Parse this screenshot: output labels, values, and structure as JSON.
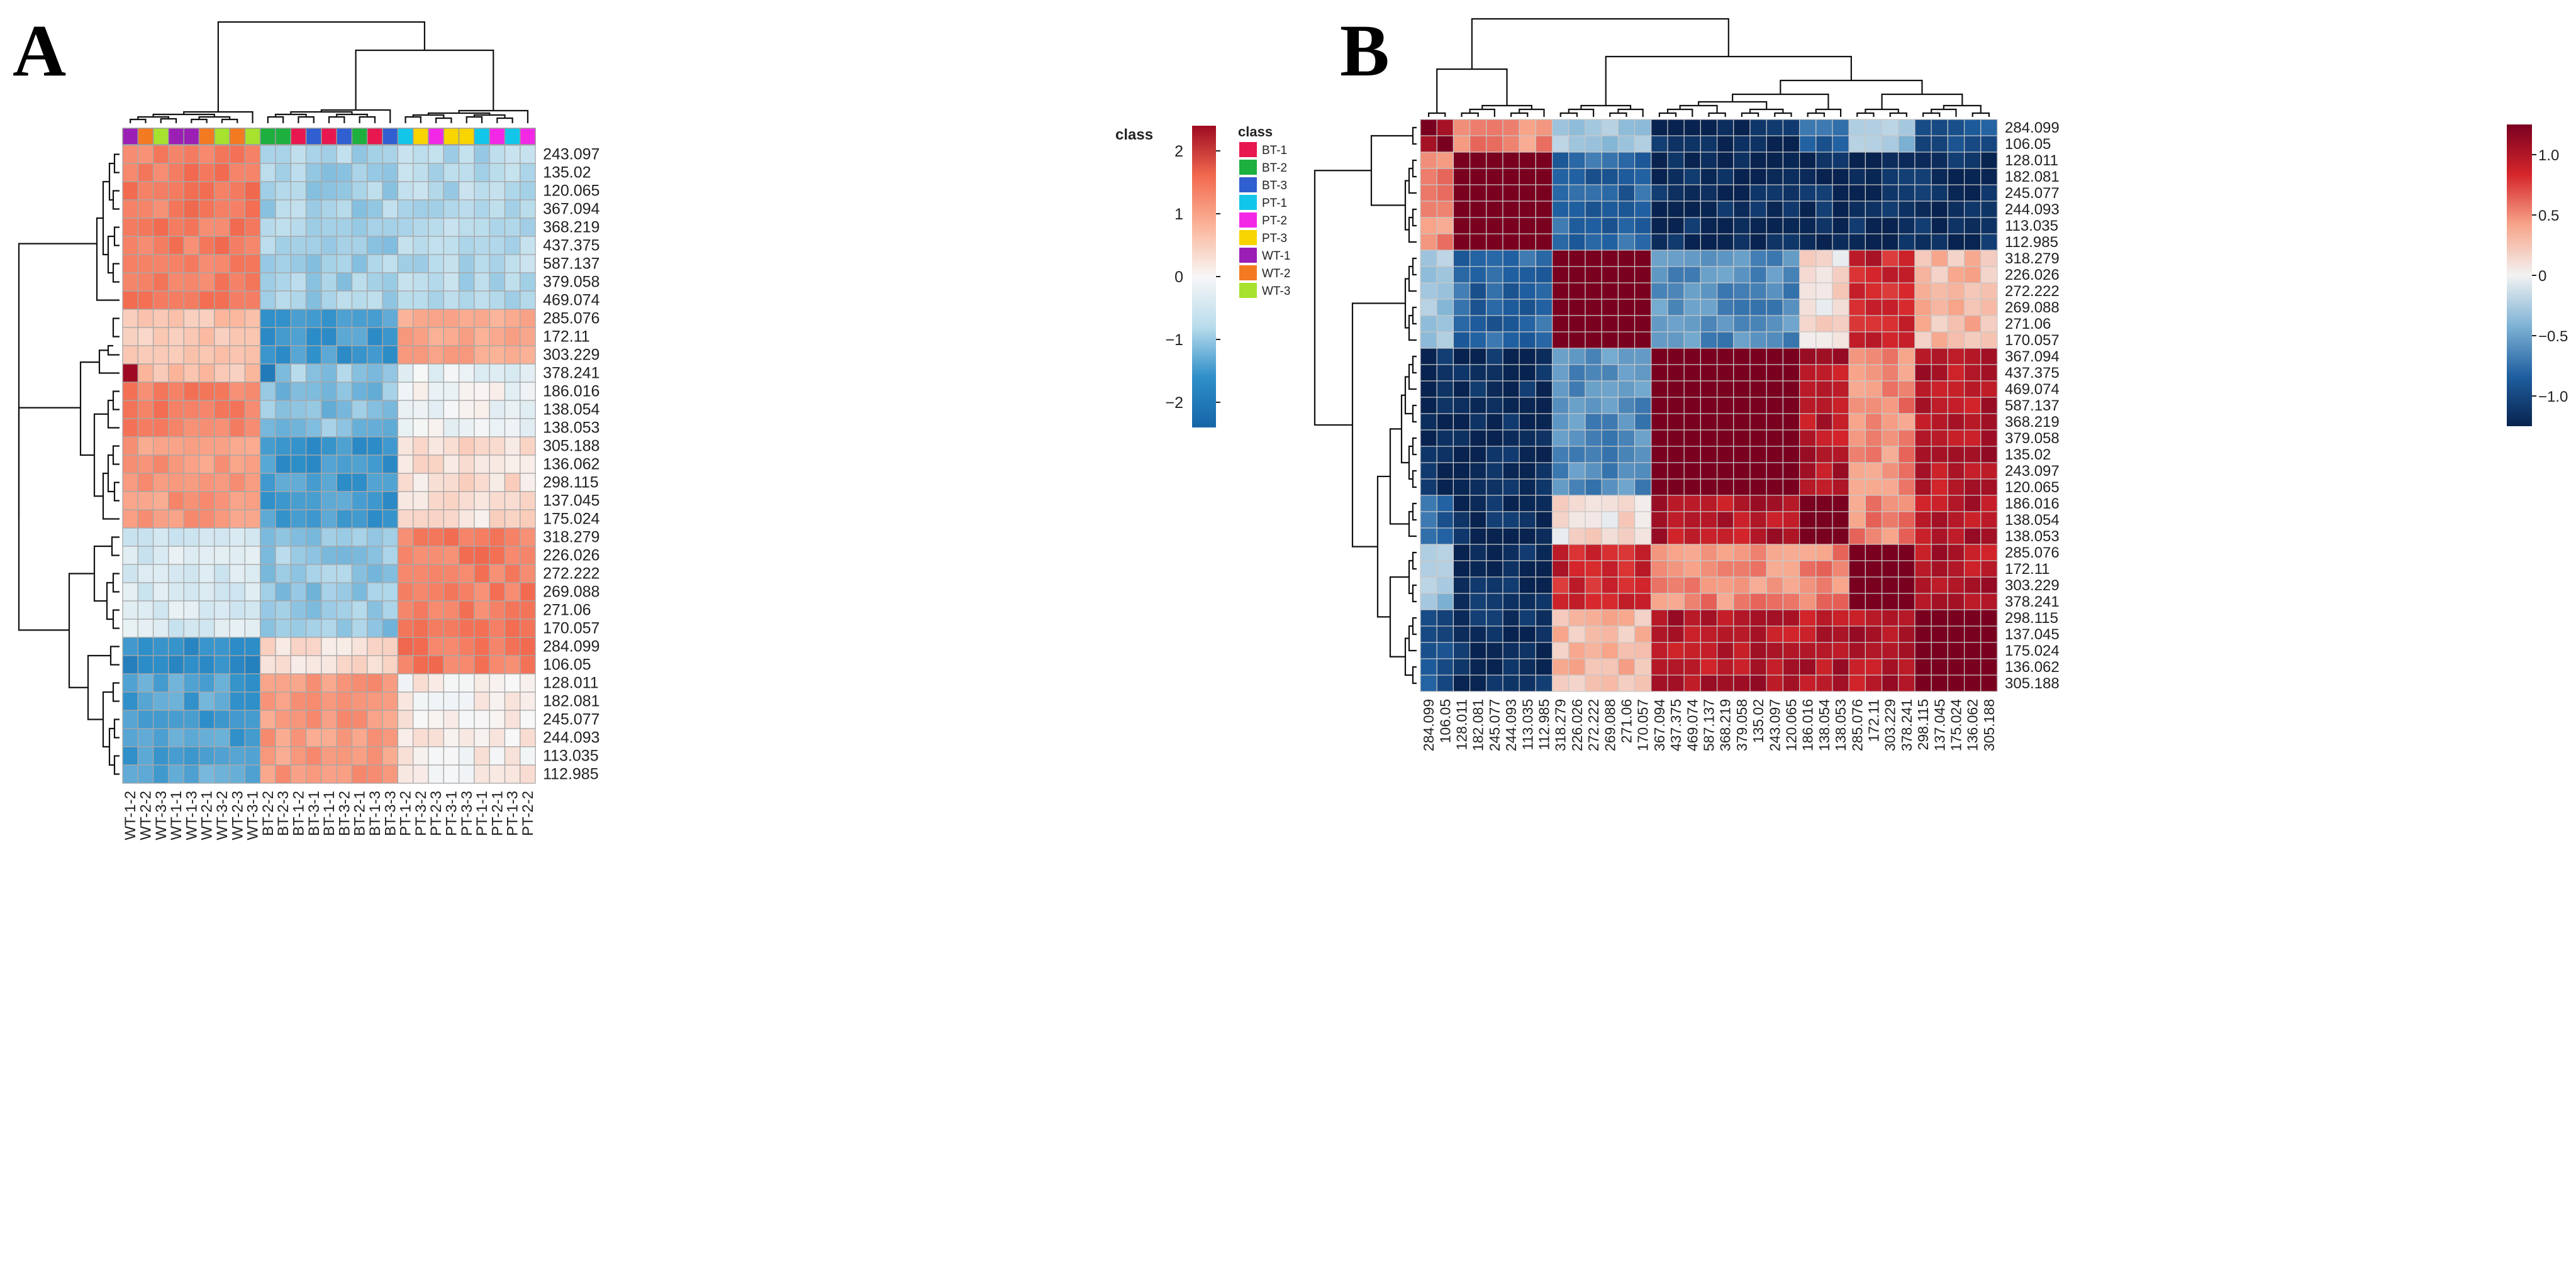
{
  "panels": [
    {
      "id": "A",
      "letter": "A"
    },
    {
      "id": "B",
      "letter": "B"
    }
  ],
  "chart_data": [
    {
      "type": "heatmap",
      "panel": "A",
      "title": "",
      "annotation_label": "class",
      "legend_title": "class",
      "legend": [
        {
          "label": "BT-1",
          "color": "#E8174F"
        },
        {
          "label": "BT-2",
          "color": "#1DB03F"
        },
        {
          "label": "BT-3",
          "color": "#2F5FD0"
        },
        {
          "label": "PT-1",
          "color": "#12C6EA"
        },
        {
          "label": "PT-2",
          "color": "#F228E6"
        },
        {
          "label": "PT-3",
          "color": "#F8D400"
        },
        {
          "label": "WT-1",
          "color": "#9B1FB5"
        },
        {
          "label": "WT-2",
          "color": "#F47A22"
        },
        {
          "label": "WT-3",
          "color": "#A6E22E"
        }
      ],
      "columns": [
        "WT-1-2",
        "WT-2-2",
        "WT-3-3",
        "WT-1-1",
        "WT-1-3",
        "WT-2-1",
        "WT-3-2",
        "WT-2-3",
        "WT-3-1",
        "BT-2-2",
        "BT-2-3",
        "BT-1-2",
        "BT-3-1",
        "BT-1-1",
        "BT-3-2",
        "BT-2-1",
        "BT-1-3",
        "BT-3-3",
        "PT-1-2",
        "PT-3-2",
        "PT-2-3",
        "PT-3-1",
        "PT-3-3",
        "PT-1-1",
        "PT-2-1",
        "PT-1-3",
        "PT-2-2"
      ],
      "column_class": [
        "WT-1",
        "WT-2",
        "WT-3",
        "WT-1",
        "WT-1",
        "WT-2",
        "WT-3",
        "WT-2",
        "WT-3",
        "BT-2",
        "BT-2",
        "BT-1",
        "BT-3",
        "BT-1",
        "BT-3",
        "BT-2",
        "BT-1",
        "BT-3",
        "PT-1",
        "PT-3",
        "PT-2",
        "PT-3",
        "PT-3",
        "PT-1",
        "PT-2",
        "PT-1",
        "PT-2"
      ],
      "rows": [
        "243.097",
        "135.02",
        "120.065",
        "367.094",
        "368.219",
        "437.375",
        "587.137",
        "379.058",
        "469.074",
        "285.076",
        "172.11",
        "303.229",
        "378.241",
        "186.016",
        "138.054",
        "138.053",
        "305.188",
        "136.062",
        "298.115",
        "137.045",
        "175.024",
        "318.279",
        "226.026",
        "272.222",
        "269.088",
        "271.06",
        "170.057",
        "284.099",
        "106.05",
        "128.011",
        "182.081",
        "245.077",
        "244.093",
        "113.035",
        "112.985"
      ],
      "row_group_values": [
        {
          "rows": 9,
          "WT": 1.4,
          "BT": -0.9,
          "PT": -0.8
        },
        {
          "rows": 3,
          "WT": 0.6,
          "BT": -1.5,
          "PT": 0.9
        },
        {
          "rows": 1,
          "WT": 0.6,
          "BT": -1.0,
          "PT": -0.2
        },
        {
          "rows": 3,
          "WT": 1.4,
          "BT": -1.1,
          "PT": -0.1
        },
        {
          "rows": 5,
          "WT": 1.1,
          "BT": -1.5,
          "PT": 0.3
        },
        {
          "rows": 6,
          "WT": -0.4,
          "BT": -1.0,
          "PT": 1.4
        },
        {
          "rows": 2,
          "WT": -1.7,
          "BT": 0.3,
          "PT": 1.4
        },
        {
          "rows": 6,
          "WT": -1.4,
          "BT": 1.1,
          "PT": 0.1
        }
      ],
      "value_range": [
        -2.4,
        2.4
      ],
      "colorbar_ticks": [
        2,
        1,
        0,
        -1,
        -2
      ],
      "colorbar_tick_labels": [
        "2",
        "1",
        "0",
        "−1",
        "−2"
      ],
      "colormap": [
        "#1565A8",
        "#2E8FC9",
        "#B9DCEC",
        "#F7F7F7",
        "#FBB59A",
        "#F26A4F",
        "#9E0A22"
      ]
    },
    {
      "type": "heatmap",
      "panel": "B",
      "title": "",
      "labels": [
        "284.099",
        "106.05",
        "128.011",
        "182.081",
        "245.077",
        "244.093",
        "113.035",
        "112.985",
        "318.279",
        "226.026",
        "272.222",
        "269.088",
        "271.06",
        "170.057",
        "367.094",
        "437.375",
        "469.074",
        "587.137",
        "368.219",
        "379.058",
        "135.02",
        "243.097",
        "120.065",
        "186.016",
        "138.054",
        "138.053",
        "285.076",
        "172.11",
        "303.229",
        "378.241",
        "298.115",
        "137.045",
        "175.024",
        "136.062",
        "305.188"
      ],
      "cluster_sizes": [
        2,
        6,
        6,
        9,
        3,
        4,
        5
      ],
      "cluster_correlation": [
        [
          1.0,
          0.5,
          -0.3,
          -1.2,
          -0.8,
          -0.3,
          -0.9
        ],
        [
          0.5,
          1.2,
          -0.8,
          -1.2,
          -1.2,
          -1.2,
          -1.2
        ],
        [
          -0.3,
          -0.8,
          1.2,
          -0.6,
          0.1,
          0.9,
          0.3
        ],
        [
          -1.2,
          -1.2,
          -0.6,
          1.2,
          1.0,
          0.5,
          1.0
        ],
        [
          -0.8,
          -1.2,
          0.1,
          1.0,
          1.2,
          0.5,
          1.0
        ],
        [
          -0.3,
          -1.2,
          0.9,
          0.5,
          0.5,
          1.2,
          1.0
        ],
        [
          -0.9,
          -1.2,
          0.3,
          1.0,
          1.0,
          1.0,
          1.2
        ]
      ],
      "value_range": [
        -1.25,
        1.25
      ],
      "colorbar_ticks": [
        1.0,
        0.5,
        0,
        -0.5,
        -1.0
      ],
      "colorbar_tick_labels": [
        "1.0",
        "0.5",
        "0",
        "−0.5",
        "−1.0"
      ],
      "colormap": [
        "#08234F",
        "#1F5FA0",
        "#7FB3D5",
        "#F2F2F2",
        "#F7A58A",
        "#D6262B",
        "#7A0020"
      ]
    }
  ]
}
